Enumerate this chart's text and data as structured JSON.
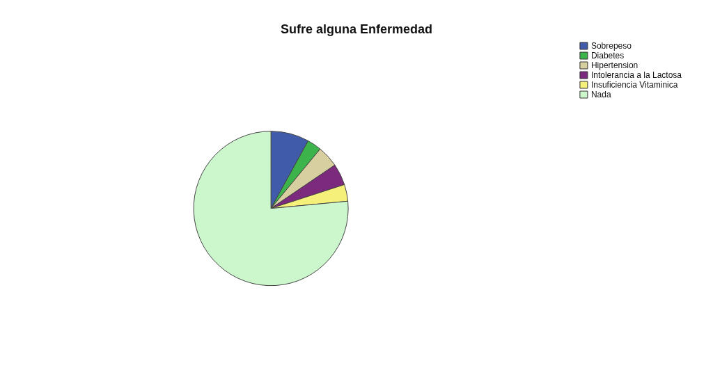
{
  "chart_data": {
    "type": "pie",
    "title": "Sufre alguna Enfermedad",
    "categories": [
      "Sobrepeso",
      "Diabetes",
      "Hipertension",
      "Intolerancia a la Lactosa",
      "Insuficiencia Vitaminica",
      "Nada"
    ],
    "values": [
      8,
      3,
      4.5,
      4.5,
      3.5,
      76.5
    ],
    "colors": [
      "#3f5ba9",
      "#3cb44b",
      "#d8cfa0",
      "#7b2a7e",
      "#f5f07a",
      "#ccf7cc"
    ],
    "legend": "top right"
  }
}
